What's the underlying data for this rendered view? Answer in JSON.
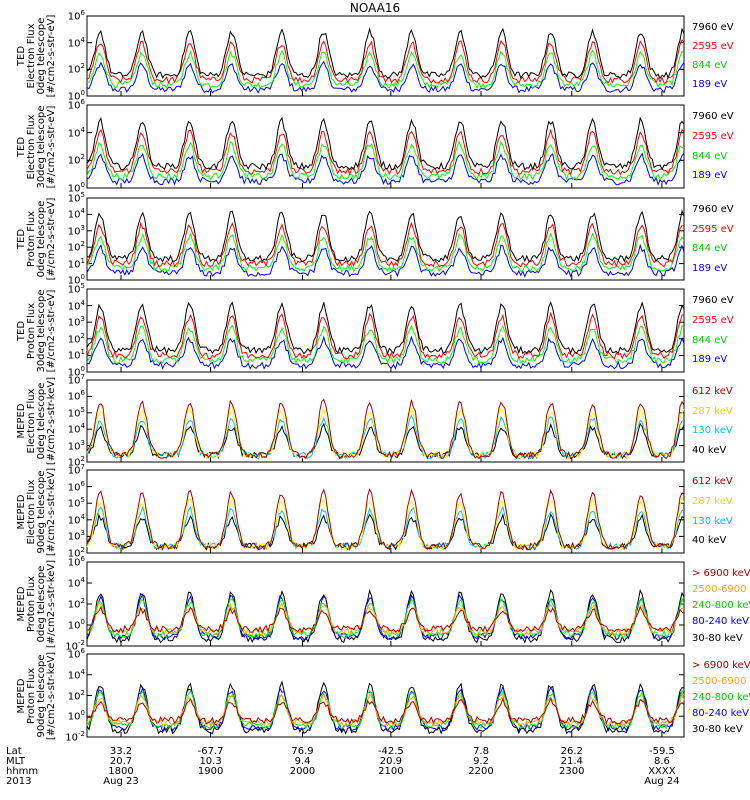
{
  "title": "NOAA16",
  "series_colors": {
    "black": "#000000",
    "blue": "#0000ff",
    "green": "#00ff00",
    "red": "#ff0000",
    "yellow": "#ffff00",
    "cyan": "#00bfff",
    "darkred": "#aa0000",
    "orange": "#ffa500"
  },
  "x_axis": {
    "row_labels": [
      "Lat",
      "MLT",
      "hhmm",
      "2013"
    ],
    "columns": [
      {
        "lat": "33.2",
        "mlt": "20.7",
        "hhmm": "1800",
        "date": "Aug 23"
      },
      {
        "lat": "-67.7",
        "mlt": "10.3",
        "hhmm": "1900",
        "date": ""
      },
      {
        "lat": "76.9",
        "mlt": "9.4",
        "hhmm": "2000",
        "date": ""
      },
      {
        "lat": "-42.5",
        "mlt": "20.9",
        "hhmm": "2100",
        "date": ""
      },
      {
        "lat": "7.8",
        "mlt": "9.2",
        "hhmm": "2200",
        "date": ""
      },
      {
        "lat": "26.2",
        "mlt": "21.4",
        "hhmm": "2300",
        "date": ""
      },
      {
        "lat": "-59.5",
        "mlt": "8.6",
        "hhmm": "XXXX",
        "date": "Aug 24"
      }
    ]
  },
  "chart_data": [
    {
      "type": "line",
      "ylabel": "TED\nElectron Flux\n0deg telescope\n[#/cm2-s-str-eV]",
      "yscale": "log",
      "ylim": [
        1,
        1000000
      ],
      "yticks": [
        "10^0",
        "10^2",
        "10^4",
        "10^6"
      ],
      "series": [
        {
          "name": "7960 eV",
          "color": "black"
        },
        {
          "name": "2595 eV",
          "color": "red"
        },
        {
          "name": "844 eV",
          "color": "green"
        },
        {
          "name": "189 eV",
          "color": "blue"
        }
      ]
    },
    {
      "type": "line",
      "ylabel": "TED\nElectron Flux\n30deg telescope\n[#/cm2-s-str-eV]",
      "yscale": "log",
      "ylim": [
        1,
        1000000
      ],
      "yticks": [
        "10^0",
        "10^2",
        "10^4",
        "10^6"
      ],
      "series": [
        {
          "name": "7960 eV",
          "color": "black"
        },
        {
          "name": "2595 eV",
          "color": "red"
        },
        {
          "name": "844 eV",
          "color": "green"
        },
        {
          "name": "189 eV",
          "color": "blue"
        }
      ]
    },
    {
      "type": "line",
      "ylabel": "TED\nProton Flux\n0deg telescope\n[#/cm2-s-str-eV]",
      "yscale": "log",
      "ylim": [
        1,
        100000
      ],
      "yticks": [
        "10^0",
        "10^1",
        "10^2",
        "10^3",
        "10^4",
        "10^5"
      ],
      "series": [
        {
          "name": "7960 eV",
          "color": "black"
        },
        {
          "name": "2595 eV",
          "color": "red"
        },
        {
          "name": "844 eV",
          "color": "green"
        },
        {
          "name": "189 eV",
          "color": "blue"
        }
      ]
    },
    {
      "type": "line",
      "ylabel": "TED\nProton Flux\n30deg telescope\n[#/cm2-s-str-eV]",
      "yscale": "log",
      "ylim": [
        1,
        100000
      ],
      "yticks": [
        "10^0",
        "10^1",
        "10^2",
        "10^3",
        "10^4",
        "10^5"
      ],
      "series": [
        {
          "name": "7960 eV",
          "color": "black"
        },
        {
          "name": "2595 eV",
          "color": "red"
        },
        {
          "name": "844 eV",
          "color": "green"
        },
        {
          "name": "189 eV",
          "color": "blue"
        }
      ]
    },
    {
      "type": "line",
      "ylabel": "MEPED\nElectron Flux\n0deg telescope\n[#/cm2-s-str-keV]",
      "yscale": "log",
      "ylim": [
        100,
        10000000
      ],
      "yticks": [
        "10^2",
        "10^3",
        "10^4",
        "10^5",
        "10^6",
        "10^7"
      ],
      "series": [
        {
          "name": "612 keV",
          "color": "darkred"
        },
        {
          "name": "287 keV",
          "color": "yellow"
        },
        {
          "name": "130 keV",
          "color": "cyan"
        },
        {
          "name": "40 keV",
          "color": "black"
        }
      ]
    },
    {
      "type": "line",
      "ylabel": "MEPED\nElectron Flux\n90deg telescope\n[#/cm2-s-str-keV]",
      "yscale": "log",
      "ylim": [
        100,
        10000000
      ],
      "yticks": [
        "10^2",
        "10^3",
        "10^4",
        "10^5",
        "10^6",
        "10^7"
      ],
      "series": [
        {
          "name": "612 keV",
          "color": "darkred"
        },
        {
          "name": "287 keV",
          "color": "yellow"
        },
        {
          "name": "130 keV",
          "color": "cyan"
        },
        {
          "name": "40 keV",
          "color": "black"
        }
      ]
    },
    {
      "type": "line",
      "ylabel": "MEPED\nProton Flux\n0deg telescope\n[#/cm2-s-str-keV]",
      "yscale": "log",
      "ylim": [
        0.01,
        1000000
      ],
      "yticks": [
        "10^-2",
        "10^0",
        "10^2",
        "10^4",
        "10^6"
      ],
      "series": [
        {
          "name": "> 6900 keV",
          "color": "darkred"
        },
        {
          "name": "2500-6900",
          "color": "orange"
        },
        {
          "name": "240-800 keV",
          "color": "green"
        },
        {
          "name": "80-240 keV",
          "color": "blue"
        },
        {
          "name": "30-80 keV",
          "color": "black"
        }
      ]
    },
    {
      "type": "line",
      "ylabel": "MEPED\nProton Flux\n90deg telescope\n[#/cm2-s-str-keV]",
      "yscale": "log",
      "ylim": [
        0.01,
        1000000
      ],
      "yticks": [
        "10^-2",
        "10^0",
        "10^2",
        "10^4",
        "10^6"
      ],
      "series": [
        {
          "name": "> 6900 keV",
          "color": "darkred"
        },
        {
          "name": "2500-6900",
          "color": "orange"
        },
        {
          "name": "240-800 keV",
          "color": "green"
        },
        {
          "name": "80-240 keV",
          "color": "blue"
        },
        {
          "name": "30-80 keV",
          "color": "black"
        }
      ]
    }
  ]
}
